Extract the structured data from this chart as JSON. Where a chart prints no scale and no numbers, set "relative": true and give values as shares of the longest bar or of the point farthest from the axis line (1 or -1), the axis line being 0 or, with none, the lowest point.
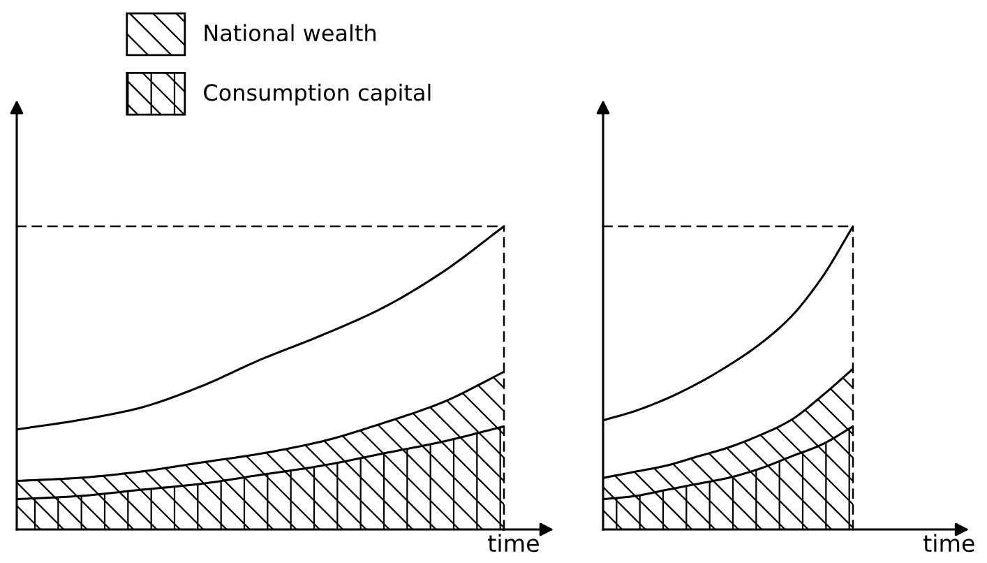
{
  "chart_data": [
    {
      "type": "area",
      "relative": true,
      "xlabel": "time",
      "grid": false,
      "legend": "top",
      "categories": [
        null,
        null,
        null,
        null,
        null,
        null,
        null,
        null,
        null
      ],
      "series": [
        {
          "type": "line",
          "color": "#000000",
          "values": [
            0.33,
            0.36,
            0.4,
            0.47,
            0.56,
            0.64,
            0.73,
            0.85,
            1.0
          ]
        },
        {
          "name": "National wealth",
          "color": "#000000",
          "values": [
            0.16,
            0.17,
            0.19,
            0.22,
            0.25,
            0.29,
            0.35,
            0.42,
            0.52
          ]
        },
        {
          "name": "Consumption capital",
          "color": "#000000",
          "values": [
            0.1,
            0.11,
            0.13,
            0.15,
            0.18,
            0.21,
            0.25,
            0.29,
            0.34
          ]
        }
      ]
    },
    {
      "type": "area",
      "relative": true,
      "xlabel": "time",
      "grid": false,
      "categories": [
        null,
        null,
        null,
        null,
        null,
        null,
        null,
        null,
        null
      ],
      "series": [
        {
          "type": "line",
          "color": "#000000",
          "values": [
            0.36,
            0.39,
            0.43,
            0.48,
            0.54,
            0.61,
            0.7,
            0.83,
            1.0
          ]
        },
        {
          "color": "#000000",
          "values": [
            0.17,
            0.19,
            0.21,
            0.24,
            0.27,
            0.31,
            0.36,
            0.44,
            0.53
          ]
        },
        {
          "color": "#000000",
          "values": [
            0.1,
            0.11,
            0.13,
            0.15,
            0.17,
            0.2,
            0.24,
            0.28,
            0.34
          ]
        }
      ]
    }
  ]
}
